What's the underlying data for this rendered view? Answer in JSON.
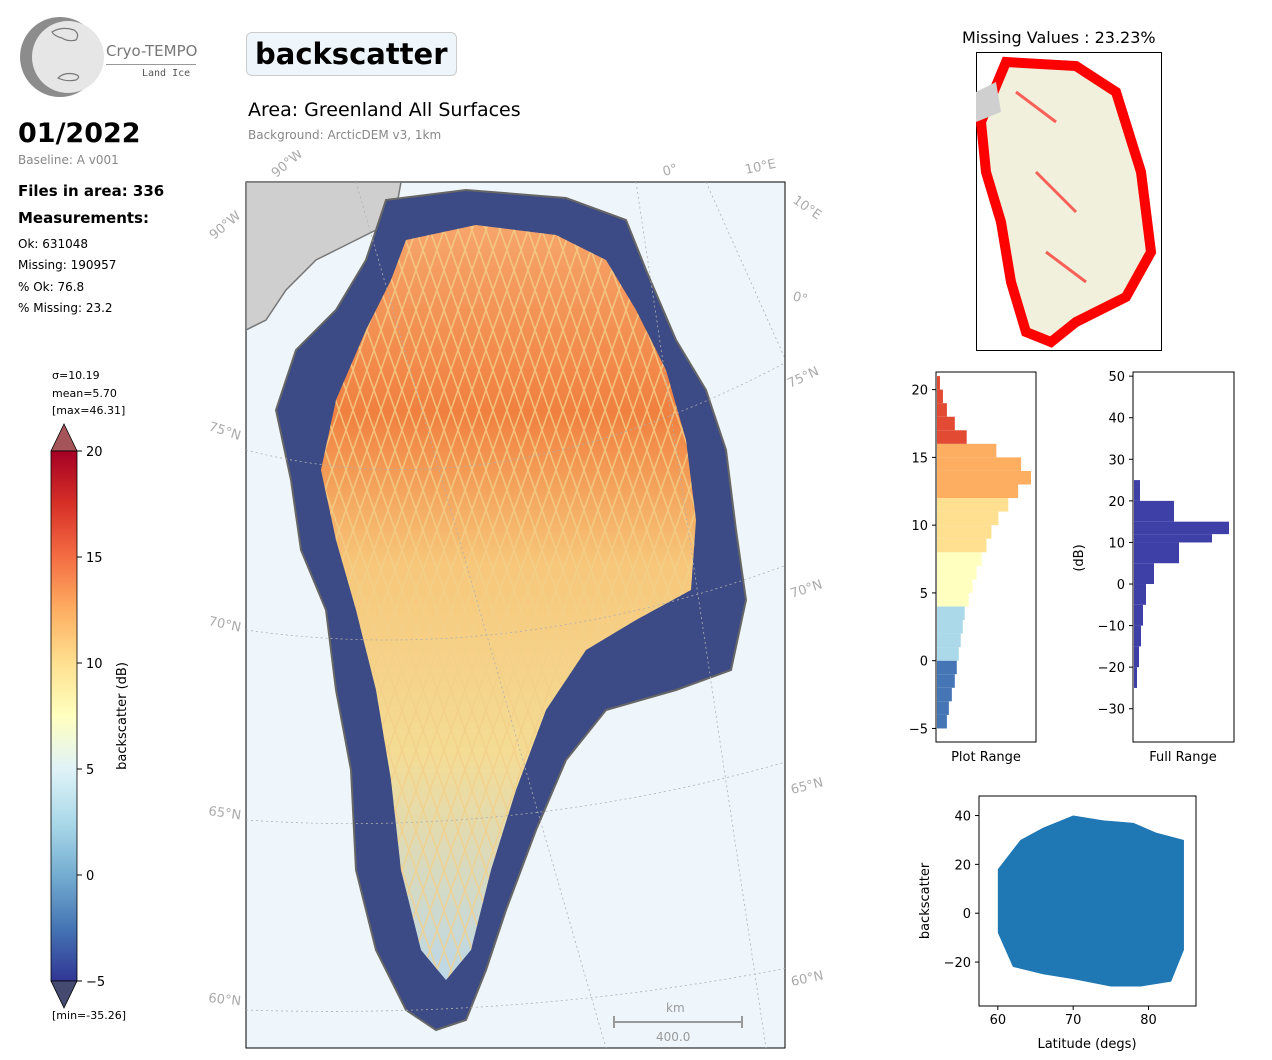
{
  "logo": {
    "name": "Cryo-TEMPO",
    "sub": "Land Ice",
    "icon": "globe-logo-icon"
  },
  "header": {
    "date": "01/2022",
    "baseline": "Baseline: A v001",
    "files": "Files in area: 336",
    "measurements_label": "Measurements:",
    "stats": [
      "Ok: 631048",
      "Missing: 190957",
      "% Ok: 76.8",
      "% Missing: 23.2"
    ]
  },
  "main": {
    "title": "backscatter",
    "area": "Area: Greenland All Surfaces",
    "background": "Background: ArcticDEM v3, 1km",
    "scale_bar": {
      "unit": "km",
      "value": "400.0"
    }
  },
  "map_labels": {
    "top": [
      "90°W",
      "0°",
      "10°E"
    ],
    "left": [
      "90°W",
      "75°N",
      "70°N",
      "65°N",
      "60°N"
    ],
    "right": [
      "10°E",
      "0°",
      "75°N",
      "70°N",
      "65°N",
      "60°N"
    ]
  },
  "colorbar": {
    "stats": [
      "σ=10.19",
      "mean=5.70",
      "[max=46.31]"
    ],
    "min_label": "[min=-35.26]",
    "label": "backscatter (dB)",
    "ticks": [
      -5,
      0,
      5,
      10,
      15,
      20
    ],
    "range": [
      -5,
      20
    ]
  },
  "missing": {
    "title": "Missing Values : 23.23%"
  },
  "colors": {
    "ocean": "#eef6fc",
    "ice": "#f0f0dc",
    "missing": "#ff0000",
    "hist_full": "#3f3fa8",
    "scatter": "#1f77b4"
  },
  "chart_data": [
    {
      "type": "bar",
      "name": "plot-range-histogram",
      "xlabel": "Plot Range",
      "ylabel": "",
      "ylim": [
        -6,
        21.3
      ],
      "yticks": [
        -5,
        0,
        5,
        10,
        15,
        20
      ],
      "bins": [
        -5,
        -4,
        -3,
        -2,
        -1,
        0,
        1,
        2,
        3,
        4,
        5,
        6,
        7,
        8,
        9,
        10,
        11,
        12,
        13,
        14,
        15,
        16,
        17,
        18,
        19,
        20
      ],
      "counts": [
        10,
        12,
        15,
        18,
        20,
        22,
        24,
        26,
        28,
        32,
        36,
        40,
        45,
        50,
        55,
        62,
        72,
        82,
        95,
        85,
        60,
        30,
        18,
        10,
        6,
        3
      ]
    },
    {
      "type": "bar",
      "name": "full-range-histogram",
      "xlabel": "Full Range",
      "ylabel": "(dB)",
      "ylim": [
        -38,
        51
      ],
      "yticks": [
        -30,
        -20,
        -10,
        0,
        10,
        20,
        30,
        40,
        50
      ],
      "bins": [
        -25,
        -20,
        -15,
        -10,
        -5,
        0,
        5,
        10,
        12,
        15,
        20,
        25
      ],
      "counts": [
        3,
        5,
        7,
        9,
        12,
        20,
        45,
        78,
        95,
        40,
        6,
        2
      ]
    },
    {
      "type": "scatter",
      "name": "latitude-scatter",
      "xlabel": "Latitude (degs)",
      "ylabel": "backscatter",
      "xlim": [
        57.5,
        86.3
      ],
      "ylim": [
        -38,
        48
      ],
      "xticks": [
        60,
        70,
        80
      ],
      "yticks": [
        -20,
        0,
        20,
        40
      ],
      "x_range": [
        59.7,
        84.7
      ],
      "upper_envelope": [
        [
          60,
          18
        ],
        [
          63,
          30
        ],
        [
          66,
          35
        ],
        [
          70,
          40
        ],
        [
          74,
          38
        ],
        [
          78,
          37
        ],
        [
          81,
          33
        ],
        [
          84.7,
          30
        ]
      ],
      "lower_envelope": [
        [
          60,
          -8
        ],
        [
          62,
          -22
        ],
        [
          66,
          -25
        ],
        [
          70,
          -27
        ],
        [
          75,
          -30
        ],
        [
          79,
          -30
        ],
        [
          83,
          -28
        ],
        [
          84.7,
          -15
        ]
      ]
    }
  ]
}
